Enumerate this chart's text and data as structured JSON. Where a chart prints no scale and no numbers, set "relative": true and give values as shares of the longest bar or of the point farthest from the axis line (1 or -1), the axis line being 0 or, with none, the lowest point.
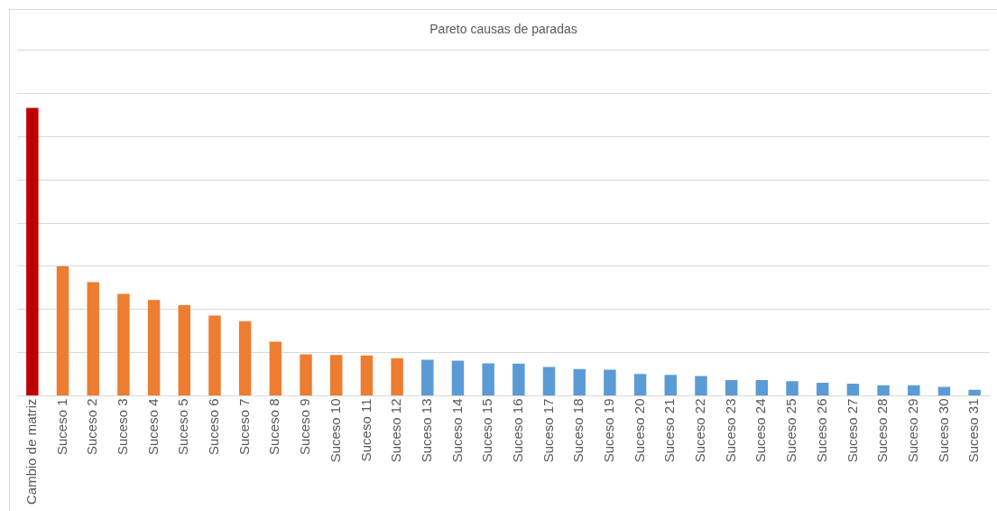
{
  "chart_data": {
    "type": "bar",
    "title": "Pareto causas de paradas",
    "relative": true,
    "grid": "y",
    "legend": false,
    "categories": [
      "Cambio de matriz",
      "Suceso 1",
      "Suceso 2",
      "Suceso 3",
      "Suceso 4",
      "Suceso 5",
      "Suceso 6",
      "Suceso 7",
      "Suceso 8",
      "Suceso 9",
      "Suceso 10",
      "Suceso 11",
      "Suceso 12",
      "Suceso 13",
      "Suceso 14",
      "Suceso 15",
      "Suceso 16",
      "Suceso 17",
      "Suceso 18",
      "Suceso 19",
      "Suceso 20",
      "Suceso 21",
      "Suceso 22",
      "Suceso 23",
      "Suceso 24",
      "Suceso 25",
      "Suceso 26",
      "Suceso 27",
      "Suceso 28",
      "Suceso 29",
      "Suceso 30",
      "Suceso 31"
    ],
    "values": [
      1,
      0.45,
      0.395,
      0.354,
      0.333,
      0.315,
      0.279,
      0.259,
      0.188,
      0.144,
      0.142,
      0.14,
      0.131,
      0.125,
      0.122,
      0.113,
      0.112,
      0.1,
      0.093,
      0.091,
      0.076,
      0.073,
      0.069,
      0.055,
      0.055,
      0.051,
      0.045,
      0.042,
      0.037,
      0.037,
      0.031,
      0.021
    ],
    "colors": [
      "#c00000",
      "#ed7d31",
      "#ed7d31",
      "#ed7d31",
      "#ed7d31",
      "#ed7d31",
      "#ed7d31",
      "#ed7d31",
      "#ed7d31",
      "#ed7d31",
      "#ed7d31",
      "#ed7d31",
      "#ed7d31",
      "#5b9bd5",
      "#5b9bd5",
      "#5b9bd5",
      "#5b9bd5",
      "#5b9bd5",
      "#5b9bd5",
      "#5b9bd5",
      "#5b9bd5",
      "#5b9bd5",
      "#5b9bd5",
      "#5b9bd5",
      "#5b9bd5",
      "#5b9bd5",
      "#5b9bd5",
      "#5b9bd5",
      "#5b9bd5",
      "#5b9bd5",
      "#5b9bd5",
      "#5b9bd5"
    ]
  }
}
